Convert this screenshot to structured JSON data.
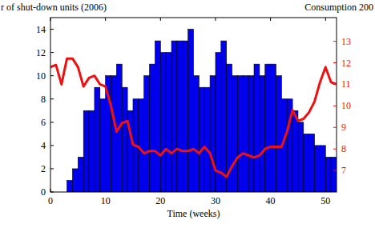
{
  "chart_data": {
    "type": "bar",
    "x_label": "Time (weeks)",
    "y_label": "r of shut-down units (2006)",
    "y2_label": "Consumption 200",
    "bins": [
      0,
      1,
      2,
      3,
      4,
      5,
      6,
      7,
      8,
      9,
      10,
      11,
      12,
      13,
      14,
      15,
      16,
      17,
      18,
      19,
      20,
      21,
      22,
      23,
      24,
      25,
      26,
      27,
      28,
      29,
      30,
      31,
      32,
      33,
      34,
      35,
      36,
      37,
      38,
      39,
      40,
      41,
      42,
      43,
      44,
      45,
      46,
      47,
      48,
      49,
      50,
      51,
      52
    ],
    "xlim": [
      0,
      52
    ],
    "xticks": [
      0,
      10,
      20,
      30,
      40,
      50
    ],
    "ylim": [
      0,
      15
    ],
    "yticks": [
      0,
      2,
      4,
      6,
      8,
      10,
      12,
      14
    ],
    "y2lim": [
      6,
      14.1
    ],
    "y2ticks": [
      7,
      8,
      9,
      10,
      11,
      12,
      13
    ],
    "series": [
      {
        "type": "bar",
        "color": "#0000ee",
        "values": [
          0,
          0,
          0,
          1,
          2,
          3,
          7,
          7,
          9,
          8,
          10,
          10,
          11,
          9,
          7,
          8,
          8,
          10,
          11,
          13,
          12,
          12,
          13,
          13,
          13,
          14,
          10,
          9,
          9,
          10,
          12,
          13,
          11,
          10,
          10,
          10,
          10,
          11,
          10,
          11,
          11,
          10,
          8,
          8,
          7,
          6,
          5,
          5,
          4,
          4,
          3,
          3
        ]
      },
      {
        "type": "line",
        "axis": "y2",
        "color": "#ee1111",
        "x": [
          0,
          1,
          2,
          3,
          4,
          5,
          6,
          7,
          8,
          9,
          10,
          11,
          12,
          13,
          14,
          15,
          16,
          17,
          18,
          19,
          20,
          21,
          22,
          23,
          24,
          25,
          26,
          27,
          28,
          29,
          30,
          31,
          32,
          33,
          34,
          35,
          36,
          37,
          38,
          39,
          40,
          41,
          42,
          43,
          44,
          45,
          46,
          47,
          48,
          49,
          50,
          51,
          52
        ],
        "values": [
          11.8,
          11.9,
          11.0,
          12.2,
          12.2,
          11.8,
          10.9,
          11.3,
          11.4,
          11.0,
          10.9,
          10.0,
          8.8,
          9.2,
          9.3,
          8.2,
          8.1,
          7.8,
          7.9,
          7.9,
          7.7,
          8.0,
          7.8,
          8.0,
          7.9,
          7.9,
          8.0,
          7.8,
          8.1,
          7.8,
          7.0,
          6.9,
          6.7,
          7.2,
          7.6,
          7.8,
          7.7,
          7.6,
          7.7,
          8.0,
          8.1,
          8.1,
          8.1,
          8.8,
          9.8,
          9.3,
          9.4,
          9.7,
          10.2,
          11.1,
          11.8,
          11.1,
          11.0
        ]
      }
    ]
  }
}
